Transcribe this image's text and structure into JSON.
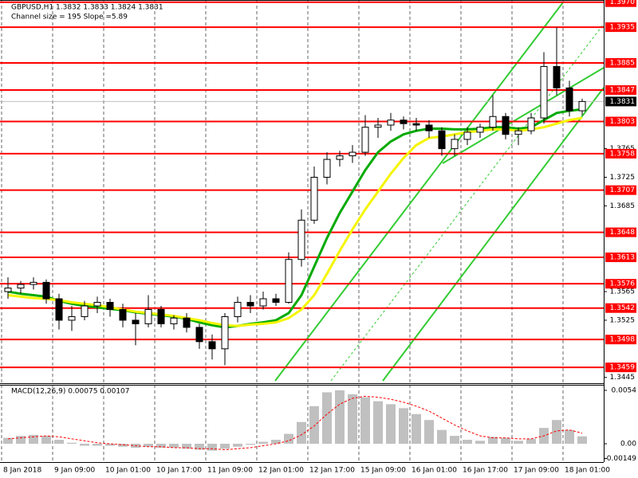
{
  "chart_data": [
    {
      "type": "candlestick",
      "title": "GBPUSD,H1  1.3832 1.3833 1.3824 1.3831",
      "subtitle": "Channel size = 195 Slope =5.89",
      "categories": [
        "8 Jan 2018",
        null,
        null,
        null,
        "9 Jan 09:00",
        null,
        null,
        null,
        "10 Jan 01:00",
        null,
        null,
        null,
        "10 Jan 17:00",
        null,
        null,
        null,
        "11 Jan 09:00",
        null,
        null,
        null,
        "12 Jan 01:00",
        null,
        null,
        null,
        "12 Jan 17:00",
        null,
        null,
        null,
        "15 Jan 09:00",
        null,
        null,
        null,
        "16 Jan 01:00",
        null,
        null,
        null,
        "16 Jan 17:00",
        null,
        null,
        null,
        "17 Jan 09:00",
        null,
        null,
        null,
        "18 Jan 01:00",
        null
      ],
      "open": [
        1.3565,
        1.357,
        1.3575,
        1.3578,
        1.3555,
        1.3525,
        1.353,
        1.3545,
        1.355,
        1.354,
        1.3525,
        1.352,
        1.354,
        1.352,
        1.3528,
        1.3515,
        1.3495,
        1.3485,
        1.353,
        1.355,
        1.3545,
        1.3555,
        1.355,
        1.361,
        1.3665,
        1.3725,
        1.375,
        1.3755,
        1.376,
        1.3795,
        1.3798,
        1.3805,
        1.38,
        1.3798,
        1.379,
        1.3765,
        1.3778,
        1.3788,
        1.3795,
        1.381,
        1.3785,
        1.379,
        1.3808,
        1.388,
        1.385,
        1.3818
      ],
      "high": [
        1.3585,
        1.358,
        1.3585,
        1.3582,
        1.3562,
        1.3545,
        1.3552,
        1.3558,
        1.3555,
        1.3548,
        1.3535,
        1.356,
        1.3545,
        1.3532,
        1.3535,
        1.352,
        1.3505,
        1.3535,
        1.3558,
        1.356,
        1.3565,
        1.3562,
        1.362,
        1.368,
        1.374,
        1.376,
        1.3762,
        1.377,
        1.3812,
        1.3808,
        1.3815,
        1.381,
        1.3808,
        1.3805,
        1.3795,
        1.3785,
        1.3795,
        1.38,
        1.384,
        1.3815,
        1.3795,
        1.3815,
        1.39,
        1.3935,
        1.386,
        1.3835
      ],
      "low": [
        1.3555,
        1.3562,
        1.3568,
        1.3548,
        1.3512,
        1.351,
        1.3525,
        1.3535,
        1.353,
        1.3515,
        1.349,
        1.3515,
        1.3515,
        1.3512,
        1.3508,
        1.3485,
        1.347,
        1.3462,
        1.3522,
        1.3535,
        1.354,
        1.3545,
        1.3548,
        1.36,
        1.366,
        1.3715,
        1.374,
        1.3745,
        1.3755,
        1.378,
        1.379,
        1.3792,
        1.379,
        1.378,
        1.3755,
        1.3755,
        1.377,
        1.378,
        1.379,
        1.3778,
        1.377,
        1.3785,
        1.38,
        1.384,
        1.381,
        1.3812
      ],
      "close": [
        1.357,
        1.3575,
        1.3578,
        1.3555,
        1.3525,
        1.353,
        1.3545,
        1.355,
        1.354,
        1.3525,
        1.352,
        1.354,
        1.352,
        1.3528,
        1.3515,
        1.3495,
        1.3485,
        1.353,
        1.355,
        1.3545,
        1.3555,
        1.355,
        1.361,
        1.3665,
        1.3725,
        1.375,
        1.3755,
        1.376,
        1.3795,
        1.3798,
        1.3805,
        1.38,
        1.3798,
        1.379,
        1.3765,
        1.3778,
        1.3788,
        1.3795,
        1.381,
        1.3785,
        1.379,
        1.3808,
        1.388,
        1.385,
        1.3818,
        1.3831
      ],
      "up_color": "#ffffff",
      "down_color": "#000000",
      "wick_color": "#000000",
      "overlays": [
        {
          "color": "#00aa00",
          "values": [
            1.3565,
            1.3562,
            1.356,
            1.3558,
            1.3552,
            1.3548,
            1.3545,
            1.3543,
            1.3541,
            1.3539,
            1.3536,
            1.3534,
            1.3532,
            1.353,
            1.3527,
            1.3522,
            1.3518,
            1.3515,
            1.3517,
            1.352,
            1.3522,
            1.3525,
            1.3535,
            1.356,
            1.36,
            1.364,
            1.3675,
            1.3705,
            1.3735,
            1.376,
            1.3775,
            1.3785,
            1.379,
            1.3793,
            1.3793,
            1.3792,
            1.3792,
            1.3793,
            1.3795,
            1.3795,
            1.3793,
            1.3795,
            1.3805,
            1.3815,
            1.3818,
            1.382
          ]
        },
        {
          "color": "#f5f500",
          "values": [
            1.356,
            1.3558,
            1.3556,
            1.3555,
            1.3553,
            1.355,
            1.3548,
            1.3546,
            1.3543,
            1.354,
            1.3537,
            1.3535,
            1.3533,
            1.3531,
            1.3528,
            1.3525,
            1.3521,
            1.3518,
            1.3517,
            1.3519,
            1.352,
            1.3522,
            1.3528,
            1.354,
            1.356,
            1.359,
            1.3622,
            1.3652,
            1.368,
            1.3705,
            1.373,
            1.3752,
            1.377,
            1.378,
            1.3782,
            1.3785,
            1.3788,
            1.379,
            1.3792,
            1.3792,
            1.379,
            1.3792,
            1.3795,
            1.38,
            1.3805,
            1.3808
          ]
        }
      ],
      "levels": [
        {
          "value": 1.397,
          "label": "1.3970"
        },
        1.3935,
        1.3885,
        1.3847,
        1.3803,
        1.3758,
        1.3707,
        1.3648,
        1.3613,
        1.3576,
        1.3542,
        1.3498,
        1.3459
      ],
      "level_color": "#ff0000",
      "last_price": 1.3831,
      "ylim": [
        1.3438,
        1.3973
      ],
      "yticks": [
        1.3445,
        1.3525,
        1.3565,
        1.3685,
        1.3725,
        1.3765
      ]
    },
    {
      "type": "macd",
      "title": "MACD(12,26,9) 0.00075 0.00107",
      "histogram": [
        0.0006,
        0.0008,
        0.0009,
        0.0008,
        0.0004,
        0.0001,
        -0.0002,
        -0.0002,
        -0.0002,
        -0.0003,
        -0.0004,
        -0.0003,
        -0.0004,
        -0.0004,
        -0.0005,
        -0.0006,
        -0.0007,
        -0.0005,
        -0.0003,
        -0.0001,
        0.0002,
        0.0004,
        0.001,
        0.0022,
        0.0038,
        0.0052,
        0.0054,
        0.005,
        0.0047,
        0.0043,
        0.004,
        0.0036,
        0.003,
        0.0024,
        0.0014,
        0.0008,
        0.0004,
        0.0003,
        0.0007,
        0.0006,
        0.0003,
        0.0005,
        0.0016,
        0.0024,
        0.0014,
        0.00075
      ],
      "signal": [
        0.0005,
        0.0006,
        0.0007,
        0.0008,
        0.0007,
        0.0005,
        0.0003,
        0.0001,
        0,
        -0.0001,
        -0.0002,
        -0.0003,
        -0.0003,
        -0.0004,
        -0.0004,
        -0.0005,
        -0.0005,
        -0.0006,
        -0.0005,
        -0.0004,
        -0.0002,
        0,
        0.0003,
        0.0009,
        0.0018,
        0.003,
        0.004,
        0.0046,
        0.0048,
        0.0047,
        0.0045,
        0.0042,
        0.0038,
        0.0033,
        0.0026,
        0.0019,
        0.0013,
        0.0008,
        0.0006,
        0.0006,
        0.0005,
        0.0005,
        0.0008,
        0.0013,
        0.0014,
        0.00107
      ],
      "histogram_color": "#c0c0c0",
      "signal_color": "#ff0000",
      "ylim": [
        -0.00185,
        0.00596
      ],
      "yticks": [
        0.0054,
        {
          "value": 0,
          "label": "0.00"
        },
        -0.00149
      ]
    }
  ]
}
